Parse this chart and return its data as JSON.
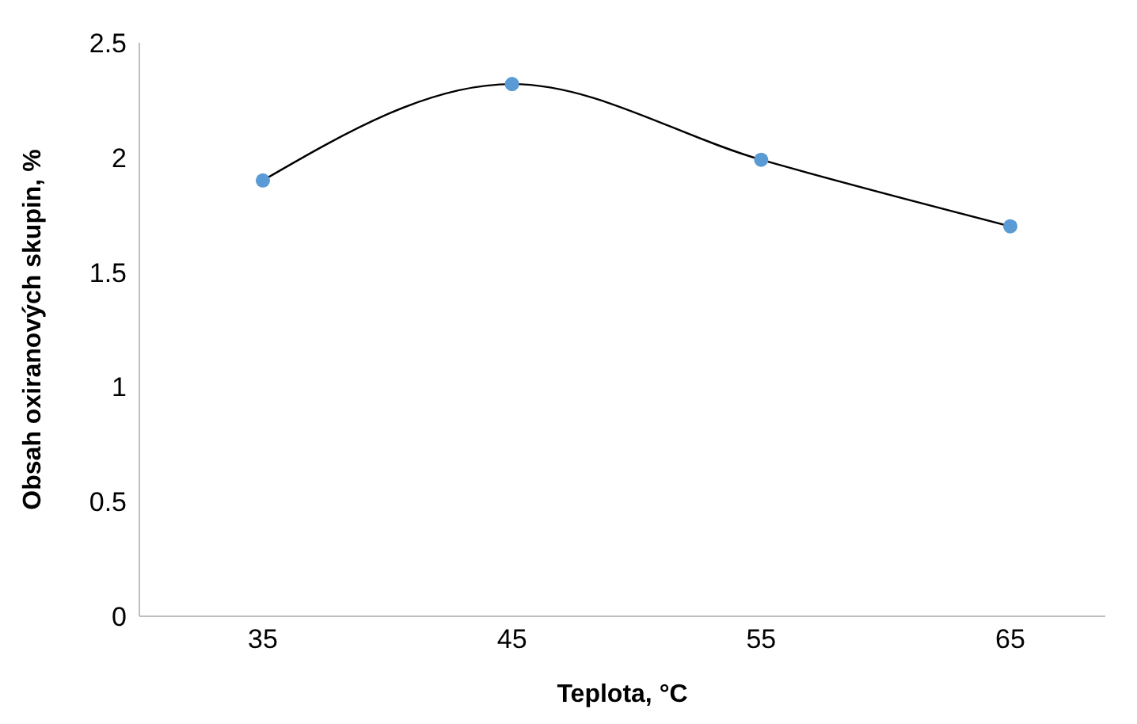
{
  "chart_data": {
    "type": "scatter",
    "xlabel": "Teplota, °C",
    "ylabel": "Obsah oxiranových skupin, %",
    "categories": [
      "35",
      "45",
      "55",
      "65"
    ],
    "series": [
      {
        "type": "line",
        "color": "#000000",
        "marker": "none",
        "values": [
          1.9,
          2.32,
          1.99,
          1.7
        ]
      },
      {
        "color": "#5b9bd5",
        "values": [
          1.9,
          2.32,
          1.99,
          1.7
        ]
      }
    ],
    "ylim": [
      0,
      2.5
    ],
    "yticks": [
      0,
      0.5,
      1,
      1.5,
      2,
      2.5
    ],
    "marker": "circle",
    "grid": false,
    "legend": false
  }
}
